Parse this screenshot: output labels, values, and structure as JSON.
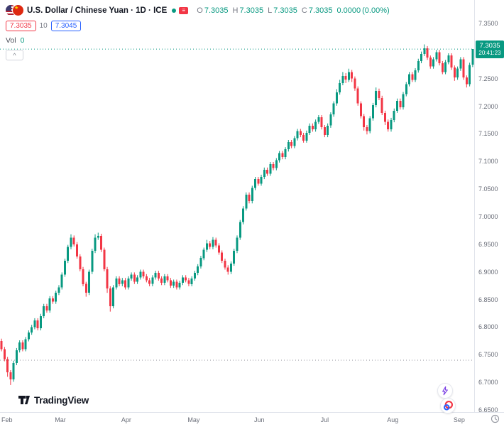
{
  "header": {
    "title": "U.S. Dollar / Chinese Yuan · 1D · ICE",
    "ohlc": {
      "o_label": "O",
      "o_value": "7.3035",
      "h_label": "H",
      "h_value": "7.3035",
      "l_label": "L",
      "l_value": "7.3035",
      "c_label": "C",
      "c_value": "7.3035",
      "change": "0.0000",
      "change_percent": "(0.00%)"
    },
    "bid": "7.3035",
    "spread": "10",
    "ask": "7.3045",
    "volume_label": "Vol",
    "volume_value": "0"
  },
  "icons": {
    "chevron_up": "^",
    "menu_lines": "≡",
    "star": "★"
  },
  "footer": {
    "logo_text": "TradingView"
  },
  "colors": {
    "up": "#089981",
    "down": "#F23645",
    "bid_red": "#F23645",
    "ask_blue": "#2962FF",
    "axis_text": "#696d78"
  },
  "chart_data": {
    "type": "candlestick",
    "title": "U.S. Dollar / Chinese Yuan, 1D, ICE",
    "up_color": "#089981",
    "down_color": "#F23645",
    "ylim": [
      6.646,
      7.3925
    ],
    "current_price": 7.3035,
    "baseline_price": 6.74,
    "last_price_label": {
      "price": "7.3035",
      "countdown": "20:41:23"
    },
    "y_ticks": [
      "7.3500",
      "7.2500",
      "7.2000",
      "7.1500",
      "7.1000",
      "7.0500",
      "7.0000",
      "6.9500",
      "6.9000",
      "6.8500",
      "6.8000",
      "6.7500",
      "6.7000",
      "6.6500"
    ],
    "x_ticks": [
      {
        "label": "Feb",
        "index": 0
      },
      {
        "label": "Mar",
        "index": 20
      },
      {
        "label": "Apr",
        "index": 42
      },
      {
        "label": "May",
        "index": 64
      },
      {
        "label": "Jun",
        "index": 86
      },
      {
        "label": "Jul",
        "index": 108
      },
      {
        "label": "Aug",
        "index": 130
      },
      {
        "label": "Sep",
        "index": 152
      }
    ],
    "candles": [
      [
        6.775,
        6.779,
        6.756,
        6.76
      ],
      [
        6.76,
        6.764,
        6.738,
        6.742
      ],
      [
        6.742,
        6.746,
        6.71,
        6.718
      ],
      [
        6.718,
        6.722,
        6.695,
        6.705
      ],
      [
        6.705,
        6.739,
        6.701,
        6.735
      ],
      [
        6.735,
        6.762,
        6.731,
        6.758
      ],
      [
        6.758,
        6.776,
        6.754,
        6.772
      ],
      [
        6.772,
        6.776,
        6.756,
        6.76
      ],
      [
        6.76,
        6.782,
        6.756,
        6.778
      ],
      [
        6.778,
        6.794,
        6.774,
        6.79
      ],
      [
        6.79,
        6.804,
        6.786,
        6.8
      ],
      [
        6.8,
        6.816,
        6.796,
        6.812
      ],
      [
        6.812,
        6.816,
        6.794,
        6.798
      ],
      [
        6.798,
        6.824,
        6.794,
        6.82
      ],
      [
        6.82,
        6.842,
        6.816,
        6.838
      ],
      [
        6.838,
        6.842,
        6.826,
        6.83
      ],
      [
        6.83,
        6.856,
        6.826,
        6.852
      ],
      [
        6.852,
        6.856,
        6.842,
        6.846
      ],
      [
        6.846,
        6.866,
        6.842,
        6.862
      ],
      [
        6.862,
        6.876,
        6.858,
        6.872
      ],
      [
        6.872,
        6.899,
        6.868,
        6.895
      ],
      [
        6.895,
        6.924,
        6.891,
        6.92
      ],
      [
        6.92,
        6.949,
        6.916,
        6.945
      ],
      [
        6.945,
        6.968,
        6.941,
        6.962
      ],
      [
        6.962,
        6.966,
        6.946,
        6.95
      ],
      [
        6.95,
        6.954,
        6.924,
        6.928
      ],
      [
        6.928,
        6.932,
        6.901,
        6.905
      ],
      [
        6.905,
        6.909,
        6.874,
        6.878
      ],
      [
        6.878,
        6.882,
        6.855,
        6.862
      ],
      [
        6.862,
        6.904,
        6.858,
        6.9
      ],
      [
        6.9,
        6.942,
        6.896,
        6.938
      ],
      [
        6.938,
        6.968,
        6.934,
        6.962
      ],
      [
        6.962,
        6.971,
        6.958,
        6.965
      ],
      [
        6.965,
        6.969,
        6.936,
        6.94
      ],
      [
        6.94,
        6.944,
        6.901,
        6.905
      ],
      [
        6.905,
        6.909,
        6.862,
        6.87
      ],
      [
        6.87,
        6.874,
        6.828,
        6.838
      ],
      [
        6.838,
        6.876,
        6.834,
        6.872
      ],
      [
        6.872,
        6.892,
        6.868,
        6.888
      ],
      [
        6.888,
        6.892,
        6.874,
        6.878
      ],
      [
        6.878,
        6.889,
        6.874,
        6.885
      ],
      [
        6.885,
        6.889,
        6.868,
        6.872
      ],
      [
        6.872,
        6.892,
        6.868,
        6.888
      ],
      [
        6.888,
        6.899,
        6.884,
        6.895
      ],
      [
        6.895,
        6.899,
        6.878,
        6.882
      ],
      [
        6.882,
        6.894,
        6.878,
        6.89
      ],
      [
        6.89,
        6.904,
        6.886,
        6.9
      ],
      [
        6.9,
        6.904,
        6.888,
        6.892
      ],
      [
        6.892,
        6.896,
        6.881,
        6.885
      ],
      [
        6.885,
        6.889,
        6.874,
        6.878
      ],
      [
        6.878,
        6.894,
        6.874,
        6.89
      ],
      [
        6.89,
        6.902,
        6.886,
        6.898
      ],
      [
        6.898,
        6.902,
        6.884,
        6.888
      ],
      [
        6.888,
        6.892,
        6.876,
        6.88
      ],
      [
        6.88,
        6.896,
        6.876,
        6.892
      ],
      [
        6.892,
        6.896,
        6.881,
        6.885
      ],
      [
        6.885,
        6.889,
        6.871,
        6.875
      ],
      [
        6.875,
        6.886,
        6.871,
        6.882
      ],
      [
        6.882,
        6.886,
        6.868,
        6.872
      ],
      [
        6.872,
        6.884,
        6.868,
        6.88
      ],
      [
        6.88,
        6.894,
        6.876,
        6.89
      ],
      [
        6.89,
        6.894,
        6.881,
        6.885
      ],
      [
        6.885,
        6.889,
        6.874,
        6.878
      ],
      [
        6.878,
        6.892,
        6.874,
        6.888
      ],
      [
        6.888,
        6.902,
        6.884,
        6.898
      ],
      [
        6.898,
        6.914,
        6.894,
        6.91
      ],
      [
        6.91,
        6.929,
        6.906,
        6.925
      ],
      [
        6.925,
        6.944,
        6.921,
        6.94
      ],
      [
        6.94,
        6.958,
        6.936,
        6.952
      ],
      [
        6.952,
        6.956,
        6.941,
        6.945
      ],
      [
        6.945,
        6.963,
        6.941,
        6.958
      ],
      [
        6.958,
        6.962,
        6.944,
        6.948
      ],
      [
        6.948,
        6.952,
        6.931,
        6.935
      ],
      [
        6.935,
        6.939,
        6.916,
        6.92
      ],
      [
        6.92,
        6.924,
        6.904,
        6.908
      ],
      [
        6.908,
        6.912,
        6.895,
        6.9
      ],
      [
        6.9,
        6.919,
        6.896,
        6.915
      ],
      [
        6.915,
        6.942,
        6.911,
        6.938
      ],
      [
        6.938,
        6.966,
        6.934,
        6.962
      ],
      [
        6.962,
        6.994,
        6.958,
        6.99
      ],
      [
        6.99,
        7.019,
        6.986,
        7.015
      ],
      [
        7.015,
        7.044,
        7.011,
        7.04
      ],
      [
        7.04,
        7.044,
        7.024,
        7.028
      ],
      [
        7.028,
        7.056,
        7.024,
        7.052
      ],
      [
        7.052,
        7.072,
        7.048,
        7.068
      ],
      [
        7.068,
        7.072,
        7.056,
        7.06
      ],
      [
        7.06,
        7.076,
        7.056,
        7.072
      ],
      [
        7.072,
        7.089,
        7.068,
        7.085
      ],
      [
        7.085,
        7.089,
        7.074,
        7.078
      ],
      [
        7.078,
        7.099,
        7.074,
        7.095
      ],
      [
        7.095,
        7.099,
        7.084,
        7.088
      ],
      [
        7.088,
        7.106,
        7.084,
        7.102
      ],
      [
        7.102,
        7.119,
        7.098,
        7.115
      ],
      [
        7.115,
        7.119,
        7.104,
        7.108
      ],
      [
        7.108,
        7.126,
        7.104,
        7.122
      ],
      [
        7.122,
        7.139,
        7.118,
        7.135
      ],
      [
        7.135,
        7.139,
        7.124,
        7.128
      ],
      [
        7.128,
        7.146,
        7.124,
        7.142
      ],
      [
        7.142,
        7.159,
        7.138,
        7.155
      ],
      [
        7.155,
        7.159,
        7.144,
        7.148
      ],
      [
        7.148,
        7.152,
        7.134,
        7.138
      ],
      [
        7.138,
        7.156,
        7.134,
        7.152
      ],
      [
        7.152,
        7.169,
        7.148,
        7.165
      ],
      [
        7.165,
        7.169,
        7.154,
        7.158
      ],
      [
        7.158,
        7.176,
        7.154,
        7.172
      ],
      [
        7.172,
        7.184,
        7.168,
        7.18
      ],
      [
        7.18,
        7.184,
        7.158,
        7.162
      ],
      [
        7.162,
        7.166,
        7.144,
        7.148
      ],
      [
        7.148,
        7.169,
        7.144,
        7.165
      ],
      [
        7.165,
        7.189,
        7.161,
        7.185
      ],
      [
        7.185,
        7.209,
        7.181,
        7.205
      ],
      [
        7.205,
        7.231,
        7.201,
        7.225
      ],
      [
        7.225,
        7.248,
        7.221,
        7.242
      ],
      [
        7.242,
        7.262,
        7.238,
        7.255
      ],
      [
        7.255,
        7.26,
        7.242,
        7.248
      ],
      [
        7.248,
        7.268,
        7.244,
        7.262
      ],
      [
        7.262,
        7.266,
        7.244,
        7.25
      ],
      [
        7.25,
        7.254,
        7.228,
        7.232
      ],
      [
        7.232,
        7.236,
        7.201,
        7.205
      ],
      [
        7.205,
        7.209,
        7.178,
        7.182
      ],
      [
        7.182,
        7.186,
        7.156,
        7.162
      ],
      [
        7.162,
        7.166,
        7.149,
        7.155
      ],
      [
        7.155,
        7.182,
        7.151,
        7.178
      ],
      [
        7.178,
        7.206,
        7.174,
        7.202
      ],
      [
        7.202,
        7.234,
        7.198,
        7.228
      ],
      [
        7.228,
        7.232,
        7.211,
        7.215
      ],
      [
        7.215,
        7.219,
        7.184,
        7.188
      ],
      [
        7.188,
        7.192,
        7.166,
        7.172
      ],
      [
        7.172,
        7.176,
        7.154,
        7.158
      ],
      [
        7.158,
        7.179,
        7.154,
        7.175
      ],
      [
        7.175,
        7.196,
        7.171,
        7.192
      ],
      [
        7.192,
        7.214,
        7.188,
        7.21
      ],
      [
        7.21,
        7.214,
        7.194,
        7.198
      ],
      [
        7.198,
        7.226,
        7.194,
        7.222
      ],
      [
        7.222,
        7.244,
        7.218,
        7.24
      ],
      [
        7.24,
        7.262,
        7.236,
        7.258
      ],
      [
        7.258,
        7.262,
        7.244,
        7.248
      ],
      [
        7.248,
        7.269,
        7.244,
        7.265
      ],
      [
        7.265,
        7.286,
        7.261,
        7.282
      ],
      [
        7.282,
        7.299,
        7.278,
        7.295
      ],
      [
        7.295,
        7.312,
        7.291,
        7.305
      ],
      [
        7.305,
        7.309,
        7.284,
        7.288
      ],
      [
        7.288,
        7.292,
        7.268,
        7.272
      ],
      [
        7.272,
        7.289,
        7.268,
        7.285
      ],
      [
        7.285,
        7.302,
        7.281,
        7.298
      ],
      [
        7.298,
        7.302,
        7.274,
        7.278
      ],
      [
        7.278,
        7.282,
        7.258,
        7.262
      ],
      [
        7.262,
        7.284,
        7.258,
        7.28
      ],
      [
        7.28,
        7.296,
        7.276,
        7.292
      ],
      [
        7.292,
        7.296,
        7.266,
        7.27
      ],
      [
        7.27,
        7.274,
        7.246,
        7.252
      ],
      [
        7.252,
        7.272,
        7.248,
        7.268
      ],
      [
        7.268,
        7.289,
        7.264,
        7.285
      ],
      [
        7.285,
        7.289,
        7.248,
        7.252
      ],
      [
        7.252,
        7.256,
        7.234,
        7.24
      ],
      [
        7.24,
        7.279,
        7.236,
        7.275
      ],
      [
        7.275,
        7.3035,
        7.271,
        7.3035
      ]
    ]
  }
}
